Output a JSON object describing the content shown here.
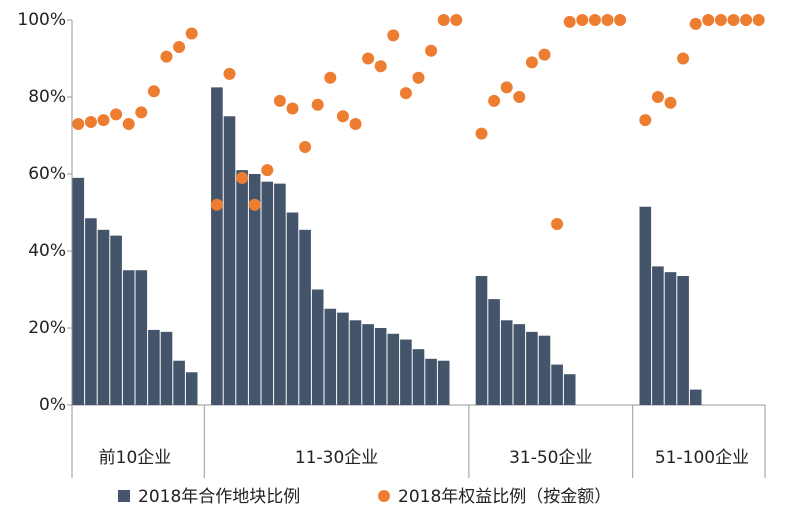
{
  "chart_data": {
    "type": "bar_scatter",
    "categories": [
      null,
      null,
      null,
      null,
      null,
      null,
      null,
      null,
      null,
      null,
      null,
      null,
      null,
      null,
      null,
      null,
      null,
      null,
      null,
      null,
      null,
      null,
      null,
      null,
      null,
      null,
      null,
      null,
      null,
      null,
      null,
      null,
      null,
      null,
      null,
      null,
      null,
      null,
      null,
      null,
      null,
      null,
      null,
      null,
      null,
      null,
      null,
      null,
      null,
      null,
      null,
      null,
      null,
      null,
      null
    ],
    "groups": [
      "前10企业",
      "11-30企业",
      "31-50企业",
      "51-100企业"
    ],
    "series": [
      {
        "name": "2018年合作地块比例",
        "kind": "bar",
        "color": "#44546a",
        "values": [
          59,
          48.5,
          45.5,
          44,
          35,
          35,
          19.5,
          19,
          11.5,
          8.5,
          null,
          82.5,
          75,
          61,
          60,
          58,
          57.5,
          50,
          45.5,
          30,
          25,
          24,
          22,
          21,
          20,
          18.5,
          17,
          14.5,
          12,
          11.5,
          null,
          null,
          33.5,
          27.5,
          22,
          21,
          19,
          18,
          10.5,
          8,
          null,
          null,
          null,
          null,
          null,
          51.5,
          36,
          34.5,
          33.5,
          4,
          null,
          null,
          null,
          null,
          null
        ]
      },
      {
        "name": "2018年权益比例（按金额）",
        "kind": "dot",
        "color": "#ed7d31",
        "values": [
          73,
          73.5,
          74,
          75.5,
          73,
          76,
          81.5,
          90.5,
          93,
          96.5,
          null,
          52,
          86,
          59,
          52,
          61,
          79,
          77,
          67,
          78,
          85,
          75,
          73,
          90,
          88,
          96,
          81,
          85,
          92,
          100,
          100,
          null,
          70.5,
          79,
          82.5,
          80,
          89,
          91,
          47,
          99.5,
          100,
          100,
          100,
          100,
          null,
          74,
          80,
          78.5,
          90,
          99,
          100,
          100,
          100,
          100,
          100
        ]
      }
    ],
    "ylim": [
      0,
      100
    ],
    "yticks": [
      {
        "value": 0,
        "label": "0%"
      },
      {
        "value": 20,
        "label": "20%"
      },
      {
        "value": 40,
        "label": "40%"
      },
      {
        "value": 60,
        "label": "60%"
      },
      {
        "value": 80,
        "label": "80%"
      },
      {
        "value": 100,
        "label": "100%"
      }
    ]
  }
}
